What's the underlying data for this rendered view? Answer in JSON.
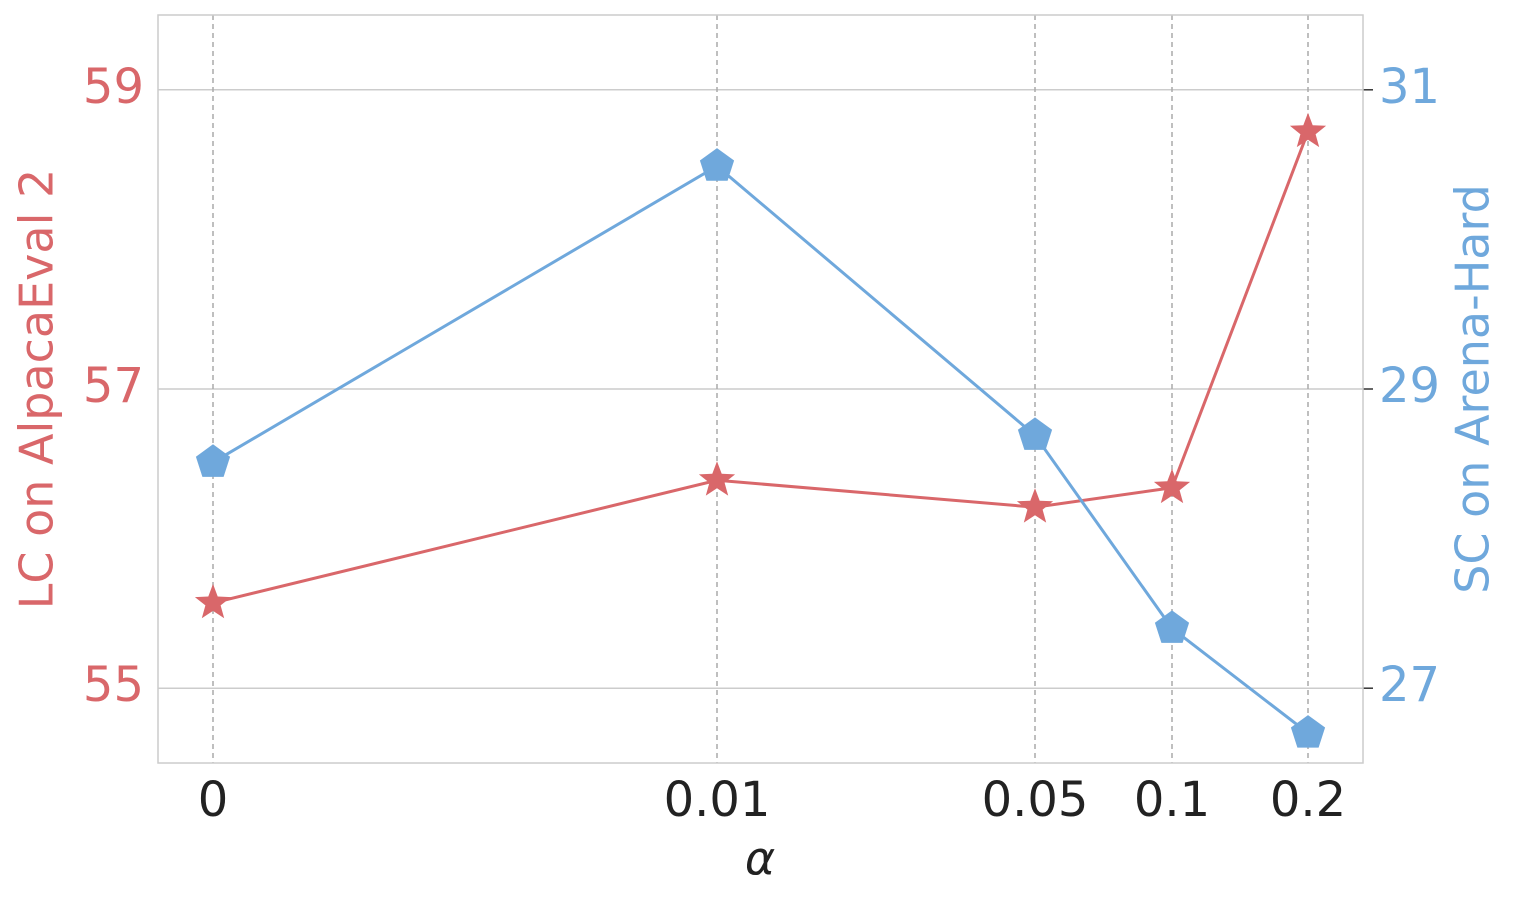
{
  "chart_data": {
    "type": "line",
    "x_label": "α",
    "y_label": "LC on AlpacaEval 2",
    "y2_label": "SC on Arena-Hard",
    "categories": [
      "0",
      "0.01",
      "0.05",
      "0.1",
      "0.2"
    ],
    "series": [
      {
        "name": "LC on AlpacaEval 2",
        "color": "#d9676a",
        "marker": "star",
        "values": [
          55.57,
          56.39,
          56.21,
          56.34,
          58.72
        ]
      },
      {
        "name": "SC on Arena-Hard",
        "color": "#6fa8dc",
        "marker": "pentagon",
        "axis": "y2",
        "values": [
          28.51,
          30.49,
          28.69,
          27.4,
          26.7
        ]
      }
    ],
    "ylim": [
      54.5,
      59.5
    ],
    "yticks": [
      55,
      57,
      59
    ],
    "y2lim": [
      26.5,
      31.5
    ],
    "y2ticks": [
      27,
      29,
      31
    ],
    "grid": true
  }
}
